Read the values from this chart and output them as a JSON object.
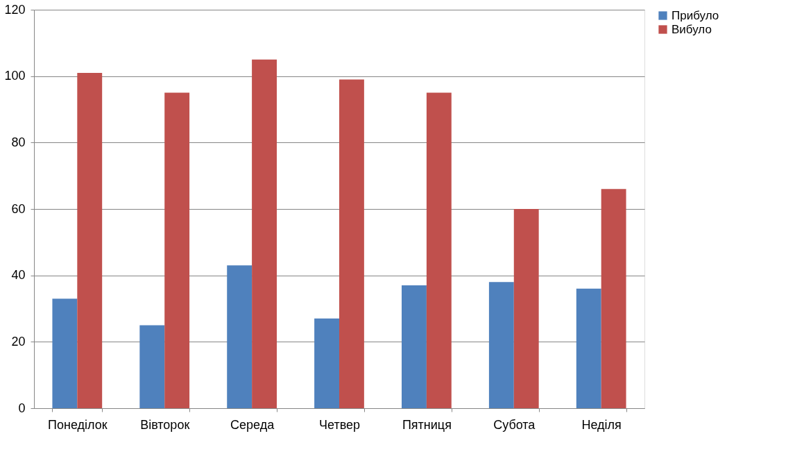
{
  "chart_data": {
    "type": "bar",
    "categories": [
      "Понеділок",
      "Вівторок",
      "Середа",
      "Четвер",
      "Пятниця",
      "Субота",
      "Неділя"
    ],
    "series": [
      {
        "name": "Прибуло",
        "color": "#4f81bd",
        "values": [
          33,
          25,
          43,
          27,
          37,
          38,
          36
        ]
      },
      {
        "name": "Вибуло",
        "color": "#c0504d",
        "values": [
          101,
          95,
          105,
          99,
          95,
          60,
          66
        ]
      }
    ],
    "ylim": [
      0,
      120
    ],
    "yticks": [
      0,
      20,
      40,
      60,
      80,
      100,
      120
    ],
    "grid": "y",
    "legend": "right"
  }
}
